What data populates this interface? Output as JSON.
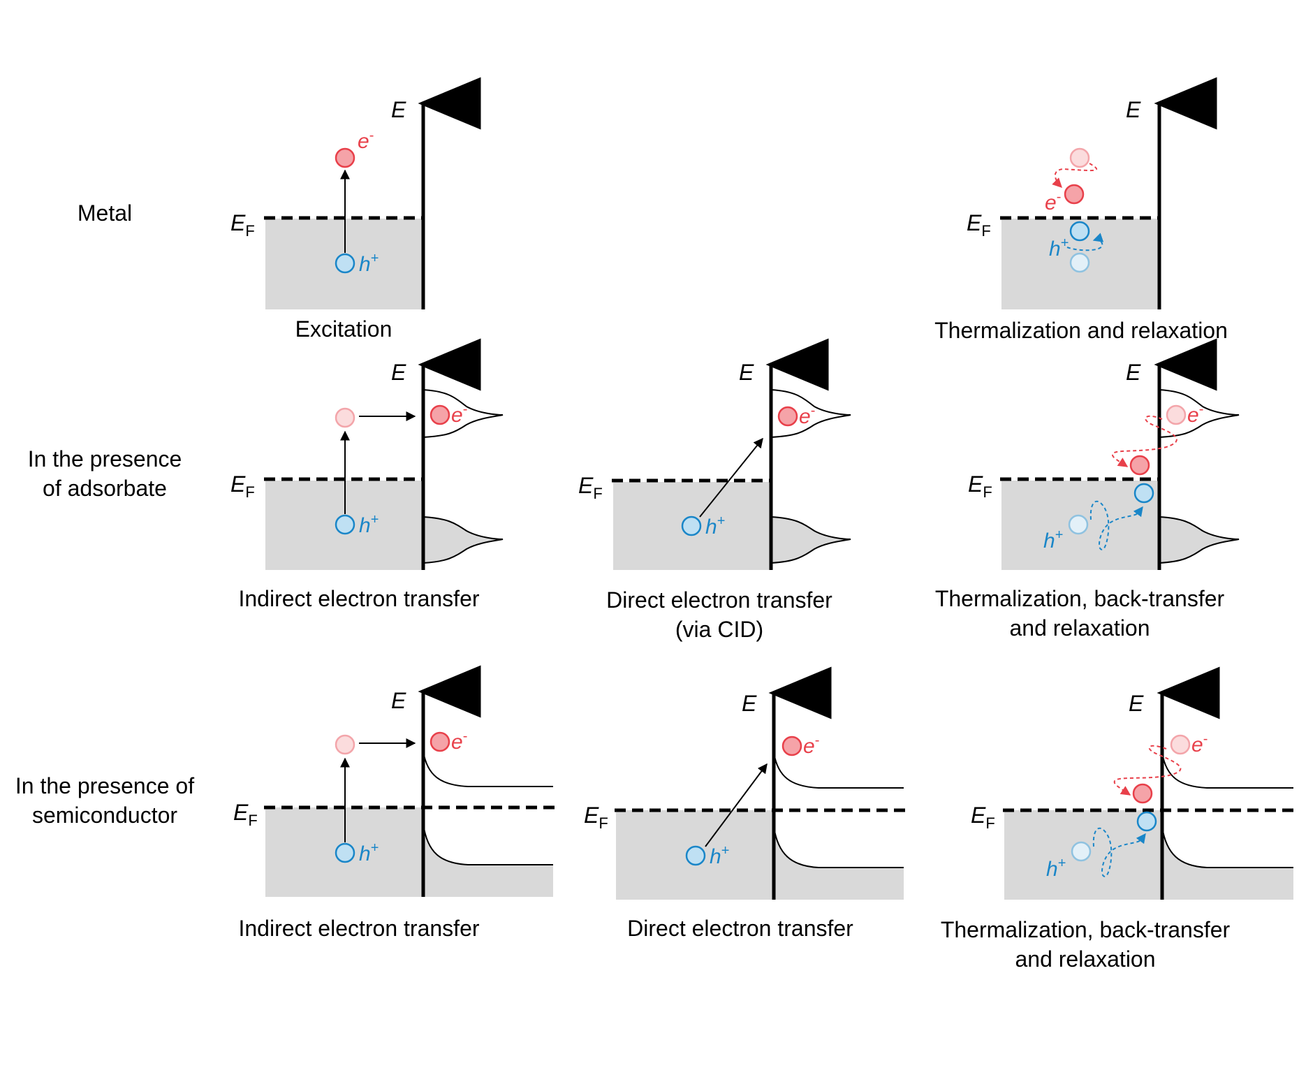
{
  "row_labels": {
    "metal": "Metal",
    "adsorbate": [
      "In the presence",
      "of adsorbate"
    ],
    "semiconductor": [
      "In the presence of",
      "semiconductor"
    ]
  },
  "symbols": {
    "energy": "E",
    "fermi_main": "E",
    "fermi_sub": "F",
    "electron": "e",
    "electron_sup": "-",
    "hole": "h",
    "hole_sup": "+"
  },
  "captions": {
    "excitation": "Excitation",
    "thermalization": "Thermalization and relaxation",
    "indirect": "Indirect electron transfer",
    "direct_cid": [
      "Direct electron transfer",
      "(via CID)"
    ],
    "thermal_back_1": [
      "Thermalization, back-transfer",
      "and relaxation"
    ],
    "indirect_2": "Indirect electron transfer",
    "direct": "Direct electron transfer",
    "thermal_back_2": [
      "Thermalization, back-transfer",
      "and relaxation"
    ]
  },
  "colors": {
    "electron": "#e8404a",
    "electron_fill": "#f5a3a8",
    "electron_faded_fill": "#fbdcdd",
    "electron_faded_stroke": "#f3a5aa",
    "hole": "#1a86c8",
    "hole_fill": "#bfe0f3",
    "hole_faded_stroke": "#8fc2e0",
    "hole_faded_fill": "#e3f0f8",
    "band_fill": "#d9d9d9"
  }
}
